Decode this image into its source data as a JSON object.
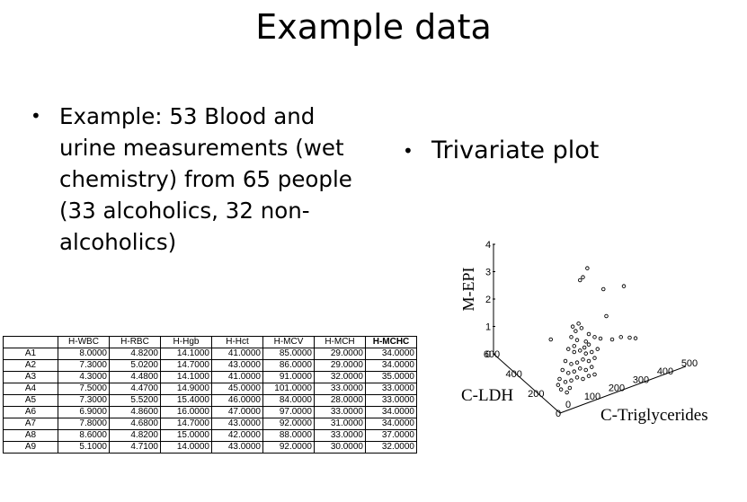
{
  "slide": {
    "title": "Example data",
    "bullet_left": "Example: 53  Blood and urine measurements (wet chemistry) from 65 people (33 alcoholics, 32 non-alcoholics)",
    "bullet_right": "Trivariate plot"
  },
  "table": {
    "columns": [
      "",
      "H-WBC",
      "H-RBC",
      "H-Hgb",
      "H-Hct",
      "H-MCV",
      "H-MCH",
      "H-MCHC"
    ],
    "rows": [
      [
        "A1",
        "8.0000",
        "4.8200",
        "14.1000",
        "41.0000",
        "85.0000",
        "29.0000",
        "34.0000"
      ],
      [
        "A2",
        "7.3000",
        "5.0200",
        "14.7000",
        "43.0000",
        "86.0000",
        "29.0000",
        "34.0000"
      ],
      [
        "A3",
        "4.3000",
        "4.4800",
        "14.1000",
        "41.0000",
        "91.0000",
        "32.0000",
        "35.0000"
      ],
      [
        "A4",
        "7.5000",
        "4.4700",
        "14.9000",
        "45.0000",
        "101.0000",
        "33.0000",
        "33.0000"
      ],
      [
        "A5",
        "7.3000",
        "5.5200",
        "15.4000",
        "46.0000",
        "84.0000",
        "28.0000",
        "33.0000"
      ],
      [
        "A6",
        "6.9000",
        "4.8600",
        "16.0000",
        "47.0000",
        "97.0000",
        "33.0000",
        "34.0000"
      ],
      [
        "A7",
        "7.8000",
        "4.6800",
        "14.7000",
        "43.0000",
        "92.0000",
        "31.0000",
        "34.0000"
      ],
      [
        "A8",
        "8.6000",
        "4.8200",
        "15.0000",
        "42.0000",
        "88.0000",
        "33.0000",
        "37.0000"
      ],
      [
        "A9",
        "5.1000",
        "4.7100",
        "14.0000",
        "43.0000",
        "92.0000",
        "30.0000",
        "32.0000"
      ]
    ]
  },
  "chart_data": {
    "type": "scatter",
    "title": "",
    "axes": {
      "z": {
        "label": "M-EPI",
        "ticks": [
          "0",
          "1",
          "2",
          "3",
          "4"
        ]
      },
      "y": {
        "label": "C-LDH",
        "ticks": [
          "600",
          "400",
          "200",
          "0"
        ]
      },
      "x": {
        "label": "C-Triglycerides",
        "ticks": [
          "0",
          "100",
          "200",
          "300",
          "400",
          "500"
        ]
      }
    },
    "points": [
      {
        "x": 0.7,
        "y": 0.42
      },
      {
        "x": 1.5,
        "y": 0.2
      },
      {
        "x": 2.5,
        "y": 2.1
      },
      {
        "x": 1.7,
        "y": 2.4
      },
      {
        "x": 1.8,
        "y": 2.5
      },
      {
        "x": 1.95,
        "y": 2.8
      },
      {
        "x": 3.2,
        "y": 2.2
      },
      {
        "x": 2.6,
        "y": 1.2
      },
      {
        "x": 1.4,
        "y": 0.5
      },
      {
        "x": 1.6,
        "y": 0.4
      },
      {
        "x": 1.9,
        "y": 0.35
      },
      {
        "x": 2.0,
        "y": 0.6
      },
      {
        "x": 2.2,
        "y": 0.5
      },
      {
        "x": 2.4,
        "y": 0.45
      },
      {
        "x": 2.8,
        "y": 0.42
      },
      {
        "x": 3.1,
        "y": 0.5
      },
      {
        "x": 3.4,
        "y": 0.48
      },
      {
        "x": 3.6,
        "y": 0.46
      },
      {
        "x": 1.3,
        "y": 0.1
      },
      {
        "x": 1.5,
        "y": 0.0
      },
      {
        "x": 1.7,
        "y": 0.05
      },
      {
        "x": 1.9,
        "y": -0.05
      },
      {
        "x": 2.1,
        "y": 0.0
      },
      {
        "x": 2.3,
        "y": 0.1
      },
      {
        "x": 1.2,
        "y": -0.3
      },
      {
        "x": 1.4,
        "y": -0.4
      },
      {
        "x": 1.6,
        "y": -0.35
      },
      {
        "x": 1.8,
        "y": -0.25
      },
      {
        "x": 2.0,
        "y": -0.3
      },
      {
        "x": 2.2,
        "y": -0.2
      },
      {
        "x": 1.1,
        "y": -0.6
      },
      {
        "x": 1.3,
        "y": -0.7
      },
      {
        "x": 1.5,
        "y": -0.65
      },
      {
        "x": 1.7,
        "y": -0.55
      },
      {
        "x": 1.9,
        "y": -0.6
      },
      {
        "x": 2.1,
        "y": -0.5
      },
      {
        "x": 1.0,
        "y": -0.9
      },
      {
        "x": 1.2,
        "y": -1.0
      },
      {
        "x": 1.4,
        "y": -0.95
      },
      {
        "x": 1.6,
        "y": -0.85
      },
      {
        "x": 1.8,
        "y": -0.9
      },
      {
        "x": 2.0,
        "y": -0.8
      },
      {
        "x": 2.2,
        "y": -0.75
      },
      {
        "x": 1.55,
        "y": 0.7
      },
      {
        "x": 1.75,
        "y": 0.8
      },
      {
        "x": 1.65,
        "y": 0.95
      },
      {
        "x": 1.45,
        "y": 0.85
      },
      {
        "x": 1.35,
        "y": -1.2
      },
      {
        "x": 1.25,
        "y": -1.35
      },
      {
        "x": 1.05,
        "y": -1.25
      },
      {
        "x": 0.95,
        "y": -1.1
      },
      {
        "x": 2.0,
        "y": 0.25
      },
      {
        "x": 1.85,
        "y": 0.15
      }
    ]
  }
}
